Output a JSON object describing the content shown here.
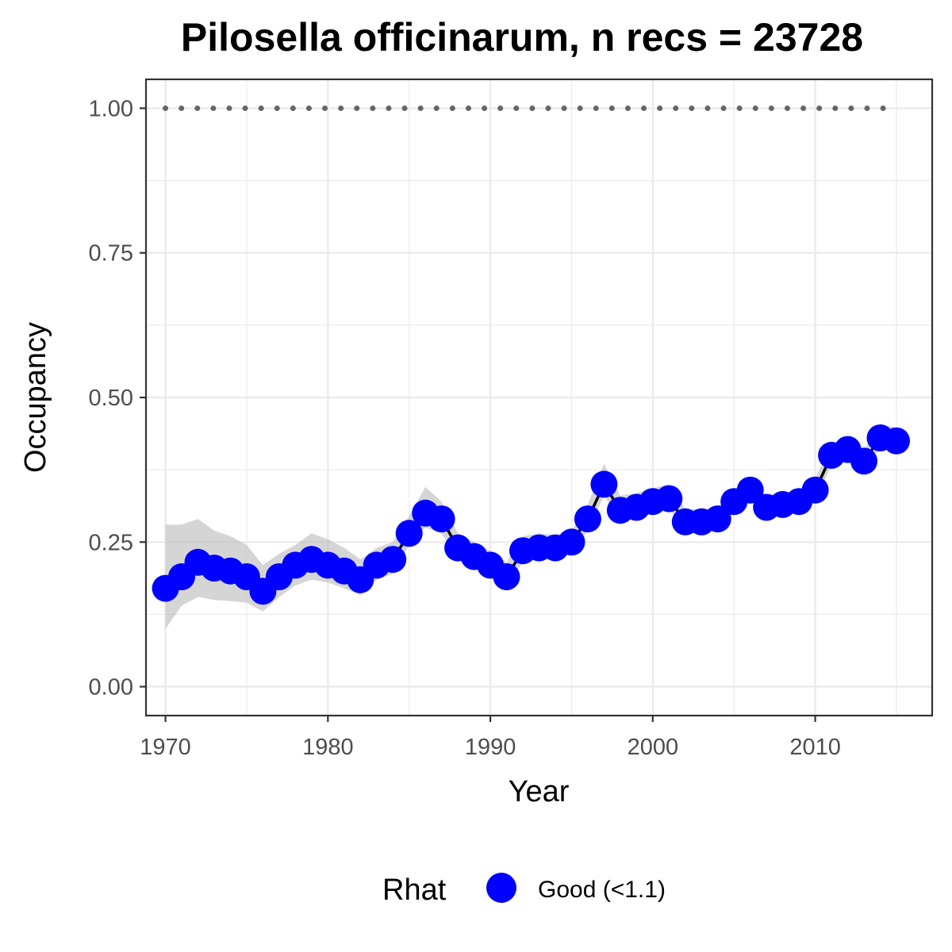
{
  "chart_data": {
    "type": "line",
    "title": "Pilosella officinarum, n recs = 23728",
    "xlabel": "Year",
    "ylabel": "Occupancy",
    "xlim": [
      1968.8,
      2017.2
    ],
    "ylim": [
      -0.05,
      1.05
    ],
    "x_ticks": [
      "1970",
      "1980",
      "1990",
      "2000",
      "2010"
    ],
    "y_ticks": [
      "0.00",
      "0.25",
      "0.50",
      "0.75",
      "1.00"
    ],
    "grid": true,
    "legend": {
      "title": "Rhat",
      "placement": "bottom",
      "entries": [
        "Good (<1.1)"
      ]
    },
    "colors": {
      "points": "#0000ff",
      "line": "#000000",
      "ribbon": "#bebebe",
      "reference": "#666666",
      "panel_border": "#333333",
      "grid": "#ebebeb"
    },
    "series": [
      {
        "name": "Good (<1.1)",
        "x": [
          1970,
          1971,
          1972,
          1973,
          1974,
          1975,
          1976,
          1977,
          1978,
          1979,
          1980,
          1981,
          1982,
          1983,
          1984,
          1985,
          1986,
          1987,
          1988,
          1989,
          1990,
          1991,
          1992,
          1993,
          1994,
          1995,
          1996,
          1997,
          1998,
          1999,
          2000,
          2001,
          2002,
          2003,
          2004,
          2005,
          2006,
          2007,
          2008,
          2009,
          2010,
          2011,
          2012,
          2013,
          2014,
          2015
        ],
        "y": [
          0.17,
          0.19,
          0.215,
          0.205,
          0.2,
          0.19,
          0.165,
          0.19,
          0.21,
          0.22,
          0.21,
          0.2,
          0.185,
          0.21,
          0.22,
          0.265,
          0.3,
          0.29,
          0.24,
          0.225,
          0.21,
          0.19,
          0.235,
          0.24,
          0.24,
          0.25,
          0.29,
          0.35,
          0.305,
          0.31,
          0.32,
          0.325,
          0.285,
          0.285,
          0.29,
          0.32,
          0.34,
          0.31,
          0.315,
          0.32,
          0.34,
          0.4,
          0.41,
          0.39,
          0.43,
          0.425
        ],
        "lower": [
          0.1,
          0.14,
          0.155,
          0.15,
          0.148,
          0.145,
          0.13,
          0.155,
          0.175,
          0.185,
          0.18,
          0.17,
          0.158,
          0.185,
          0.195,
          0.245,
          0.275,
          0.265,
          0.22,
          0.205,
          0.19,
          0.17,
          0.215,
          0.222,
          0.222,
          0.232,
          0.27,
          0.33,
          0.288,
          0.293,
          0.303,
          0.308,
          0.268,
          0.268,
          0.273,
          0.303,
          0.323,
          0.293,
          0.298,
          0.303,
          0.323,
          0.383,
          0.393,
          0.373,
          0.413,
          0.408
        ],
        "upper": [
          0.28,
          0.28,
          0.29,
          0.27,
          0.26,
          0.245,
          0.21,
          0.23,
          0.245,
          0.265,
          0.255,
          0.24,
          0.22,
          0.24,
          0.25,
          0.295,
          0.345,
          0.32,
          0.265,
          0.25,
          0.235,
          0.215,
          0.26,
          0.265,
          0.262,
          0.27,
          0.315,
          0.385,
          0.33,
          0.335,
          0.343,
          0.35,
          0.307,
          0.307,
          0.31,
          0.34,
          0.36,
          0.33,
          0.335,
          0.338,
          0.36,
          0.42,
          0.43,
          0.41,
          0.455,
          0.447
        ]
      }
    ],
    "reference": {
      "y": 1.0,
      "x_start": 1970,
      "x_end": 2015
    }
  }
}
